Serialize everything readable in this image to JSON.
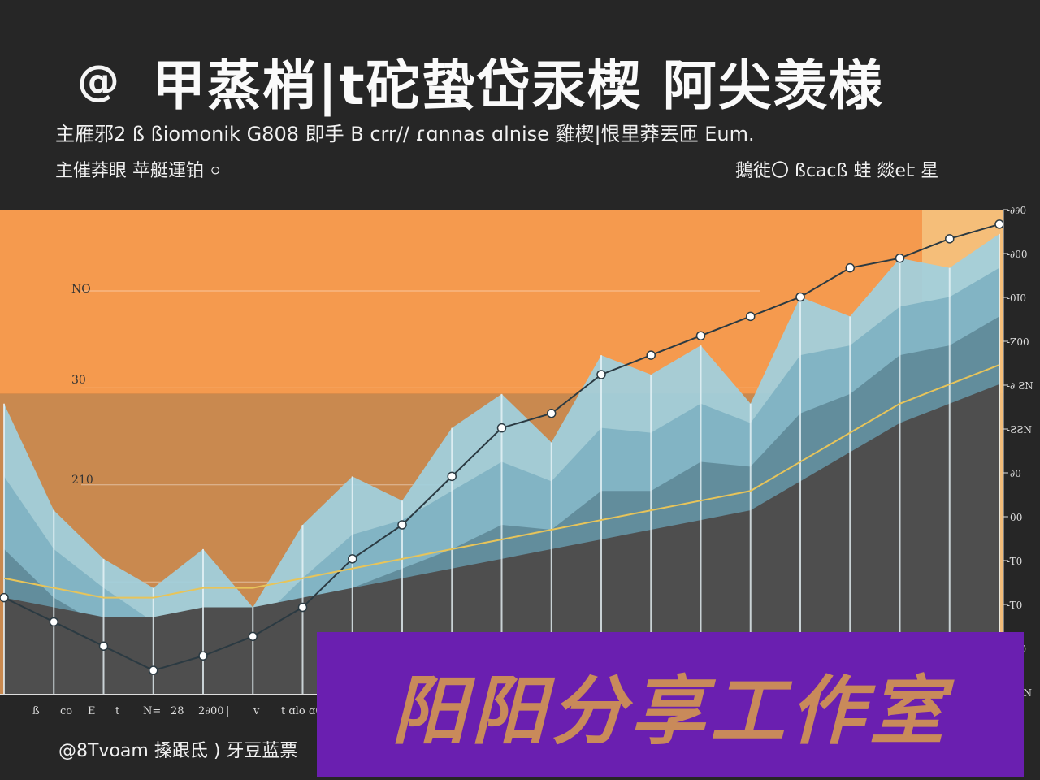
{
  "header": {
    "at_glyph": "@",
    "title": "甲蒸梢|t砣蛰岱汞楔  阿尖羡様",
    "subtitle_line1": "主雁邪2 ß ßiomonik G808 即手 B crr// ɾɑnnas ɑlnise 雞楔|恨里莽丟匝 Eum.",
    "subtitle_line2": "主催莽眼 苹艇運铂 ০",
    "subtitle_right": "鵝徙〇 ßcacß 蛙 燚eէ 星"
  },
  "footer": {
    "left_text": "@8Tvoam 搡跟氐 ) 牙豆蓝票"
  },
  "watermark": {
    "text": "阳阳分享工作室"
  },
  "colors": {
    "background": "#262626",
    "plot_orange": "#f59a4e",
    "plot_brown": "#c9894f",
    "mountain_light": "#9fd0df",
    "mountain_mid": "#7fb2c2",
    "mountain_dark": "#5f8a98",
    "base_gray": "#4e4e4e",
    "right_panel": "#f5c27e",
    "trend_yellow": "#e7c45a",
    "watermark_bg": "#6a1fb0",
    "watermark_text": "#c98a5a"
  },
  "chart_data": {
    "type": "area",
    "title": "",
    "xlabel": "",
    "ylabel": "",
    "y_tick_labels_left": [
      "NO",
      "30",
      "210"
    ],
    "y_tick_labels_right": [
      "-∂∂0",
      "-∂00",
      "-0I0",
      "-Z00",
      "-∂ ƧN",
      "-ƧƧN",
      "-∂0",
      "-00",
      "-T0",
      "-T0",
      "-∂∂0",
      "-ƧƧN"
    ],
    "x_tick_labels": [
      "ß",
      "co",
      "E",
      "t",
      "N=",
      "28",
      "2∂00",
      "|",
      "v",
      "t ɑlo",
      "ɑ0"
    ],
    "x": [
      0,
      1,
      2,
      3,
      4,
      5,
      6,
      7,
      8,
      9,
      10,
      11,
      12,
      13,
      14,
      15,
      16,
      17,
      18,
      19,
      20
    ],
    "series": [
      {
        "values": [
          60,
          38,
          28,
          22,
          30,
          18,
          35,
          45,
          40,
          55,
          62,
          52,
          70,
          66,
          72,
          60,
          82,
          78,
          90,
          88,
          95
        ]
      },
      {
        "values": [
          45,
          30,
          22,
          15,
          18,
          14,
          24,
          33,
          36,
          42,
          48,
          44,
          55,
          54,
          60,
          56,
          70,
          72,
          80,
          82,
          88
        ]
      },
      {
        "values": [
          30,
          20,
          14,
          10,
          12,
          10,
          16,
          22,
          26,
          30,
          35,
          34,
          42,
          42,
          48,
          47,
          58,
          62,
          70,
          72,
          78
        ]
      },
      {
        "values": [
          20,
          18,
          16,
          16,
          18,
          18,
          20,
          22,
          24,
          26,
          28,
          30,
          32,
          34,
          36,
          38,
          44,
          50,
          56,
          60,
          64
        ]
      }
    ],
    "trend_line": [
      20,
      15,
      10,
      5,
      8,
      12,
      18,
      28,
      35,
      45,
      55,
      58,
      66,
      70,
      74,
      78,
      82,
      88,
      90,
      94,
      97
    ],
    "ylim": [
      0,
      100
    ],
    "grid": true,
    "legend": "none"
  }
}
